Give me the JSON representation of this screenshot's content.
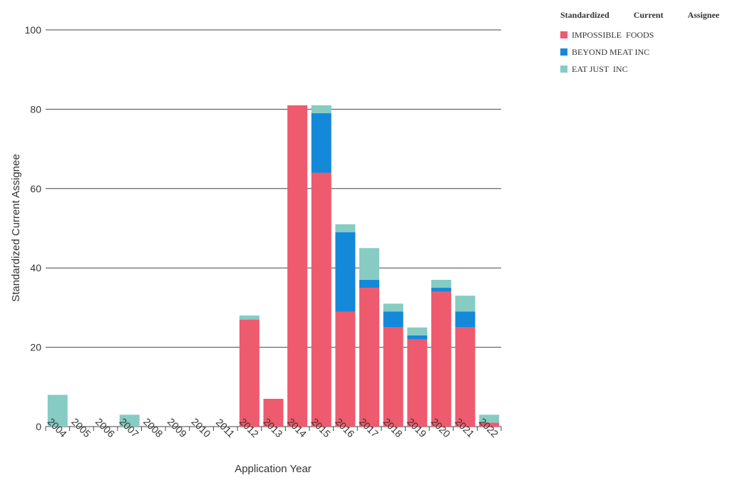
{
  "chart_data": {
    "type": "bar",
    "stacked": true,
    "categories": [
      "2004",
      "2005",
      "2006",
      "2007",
      "2008",
      "2009",
      "2010",
      "2011",
      "2012",
      "2013",
      "2014",
      "2015",
      "2016",
      "2017",
      "2018",
      "2019",
      "2020",
      "2021",
      "2022"
    ],
    "series": [
      {
        "name": "IMPOSSIBLE  FOODS",
        "color": "#ef5b6e",
        "values": [
          0,
          0,
          0,
          0,
          0,
          0,
          0,
          0,
          27,
          7,
          81,
          64,
          29,
          35,
          25,
          22,
          34,
          25,
          1
        ]
      },
      {
        "name": "BEYOND MEAT INC",
        "color": "#1589d9",
        "values": [
          0,
          0,
          0,
          0,
          0,
          0,
          0,
          0,
          0,
          0,
          0,
          15,
          20,
          2,
          4,
          1,
          1,
          4,
          0
        ]
      },
      {
        "name": "EAT JUST  INC",
        "color": "#86ccc3",
        "values": [
          8,
          0,
          0,
          3,
          0,
          0,
          0,
          0,
          1,
          0,
          0,
          2,
          2,
          8,
          2,
          2,
          2,
          4,
          2
        ]
      }
    ],
    "xlabel": "Application Year",
    "ylabel": "Standardized Current Assignee",
    "ylim": [
      0,
      100
    ],
    "yticks": [
      0,
      20,
      40,
      60,
      80,
      100
    ],
    "legend_title": [
      "Standardized",
      "Current",
      "Assignee"
    ],
    "legend_position": "top-right",
    "grid": true
  }
}
